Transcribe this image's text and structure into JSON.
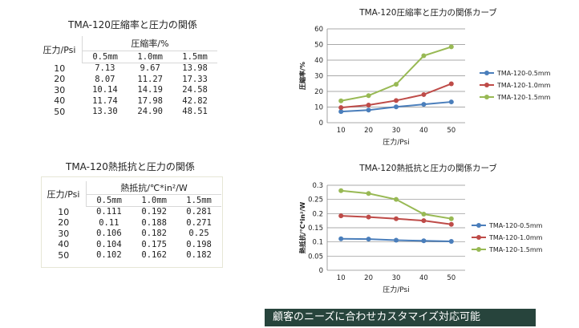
{
  "table1": {
    "title": "TMA-120圧縮率と圧力の関係",
    "row_header": "圧力/Psi",
    "group_header": "圧縮率/%",
    "columns": [
      "0.5mm",
      "1.0mm",
      "1.5mm"
    ],
    "rows": [
      [
        "10",
        "7.13",
        "9.67",
        "13.98"
      ],
      [
        "20",
        "8.07",
        "11.27",
        "17.33"
      ],
      [
        "30",
        "10.14",
        "14.19",
        "24.58"
      ],
      [
        "40",
        "11.74",
        "17.98",
        "42.82"
      ],
      [
        "50",
        "13.30",
        "24.90",
        "48.51"
      ]
    ]
  },
  "table2": {
    "title": "TMA-120熱抵抗と圧力の関係",
    "row_header": "圧力/Psi",
    "group_header": "熱抵抗/℃*in²/W",
    "columns": [
      "0.5mm",
      "1.0mm",
      "1.5mm"
    ],
    "rows": [
      [
        "10",
        "0.111",
        "0.192",
        "0.281"
      ],
      [
        "20",
        "0.11",
        "0.188",
        "0.271"
      ],
      [
        "30",
        "0.106",
        "0.182",
        "0.25"
      ],
      [
        "40",
        "0.104",
        "0.175",
        "0.198"
      ],
      [
        "50",
        "0.102",
        "0.162",
        "0.182"
      ]
    ]
  },
  "chart_data": [
    {
      "type": "line",
      "title": "TMA-120圧縮率と圧力の関係カーブ",
      "xlabel": "圧力/Psi",
      "ylabel": "圧縮率/%",
      "x": [
        10,
        20,
        30,
        40,
        50
      ],
      "ylim": [
        0,
        60
      ],
      "yticks": [
        0,
        10,
        20,
        30,
        40,
        50,
        60
      ],
      "ytick_labels": [
        "0",
        "10",
        "20",
        "30",
        "40",
        "50",
        "60"
      ],
      "grid": true,
      "legend_position": "right",
      "series": [
        {
          "name": "TMA-120-0.5mm",
          "color": "#4a7ebb",
          "values": [
            7.13,
            8.07,
            10.14,
            11.74,
            13.3
          ]
        },
        {
          "name": "TMA-120-1.0mm",
          "color": "#be4b48",
          "values": [
            9.67,
            11.27,
            14.19,
            17.98,
            24.9
          ]
        },
        {
          "name": "TMA-120-1.5mm",
          "color": "#98b954",
          "values": [
            13.98,
            17.33,
            24.58,
            42.82,
            48.51
          ]
        }
      ]
    },
    {
      "type": "line",
      "title": "TMA-120熱抵抗と圧力の関係カーブ",
      "xlabel": "圧力/Psi",
      "ylabel": "熱抵抗/℃*in²/W",
      "x": [
        10,
        20,
        30,
        40,
        50
      ],
      "ylim": [
        0,
        0.3
      ],
      "yticks": [
        0,
        0.05,
        0.1,
        0.15,
        0.2,
        0.25,
        0.3
      ],
      "ytick_labels": [
        "0",
        "0.05",
        "0.1",
        "0.15",
        "0.2",
        "0.25",
        "0.3"
      ],
      "grid": true,
      "legend_position": "right",
      "series": [
        {
          "name": "TMA-120-0.5mm",
          "color": "#4a7ebb",
          "values": [
            0.111,
            0.11,
            0.106,
            0.104,
            0.102
          ]
        },
        {
          "name": "TMA-120-1.0mm",
          "color": "#be4b48",
          "values": [
            0.192,
            0.188,
            0.182,
            0.175,
            0.162
          ]
        },
        {
          "name": "TMA-120-1.5mm",
          "color": "#98b954",
          "values": [
            0.281,
            0.271,
            0.25,
            0.198,
            0.182
          ]
        }
      ]
    }
  ],
  "banner": {
    "text": "顧客のニーズに合わせカスタマイズ対応可能",
    "background": "#27443c"
  }
}
